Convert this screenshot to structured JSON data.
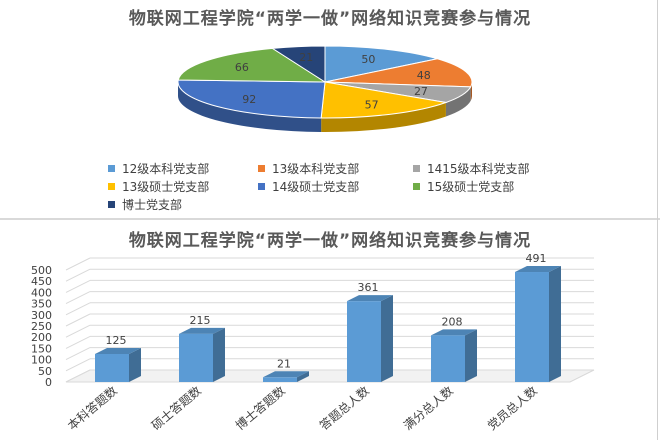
{
  "chart_data": [
    {
      "type": "pie",
      "title": "物联网工程学院“两学一做”网络知识竞赛参与情况",
      "categories": [
        "12级本科党支部",
        "13级本科党支部",
        "1415级本科党支部",
        "13级硕士党支部",
        "14级硕士党支部",
        "15级硕士党支部",
        "博士党支部"
      ],
      "values": [
        50,
        48,
        27,
        57,
        92,
        66,
        21
      ],
      "colors": [
        "#5b9bd5",
        "#ed7d31",
        "#a5a5a5",
        "#ffc000",
        "#4472c4",
        "#70ad47",
        "#264478"
      ],
      "legend_position": "bottom"
    },
    {
      "type": "bar",
      "title": "物联网工程学院“两学一做”网络知识竞赛参与情况",
      "categories": [
        "本科答题数",
        "硕士答题数",
        "博士答题数",
        "答题总人数",
        "满分总人数",
        "党员总人数"
      ],
      "values": [
        125,
        215,
        21,
        361,
        208,
        491
      ],
      "ylim": [
        0,
        500
      ],
      "yticks": [
        0,
        50,
        100,
        150,
        200,
        250,
        300,
        350,
        400,
        450,
        500
      ],
      "grid": true,
      "color": "#5b9bd5"
    }
  ]
}
